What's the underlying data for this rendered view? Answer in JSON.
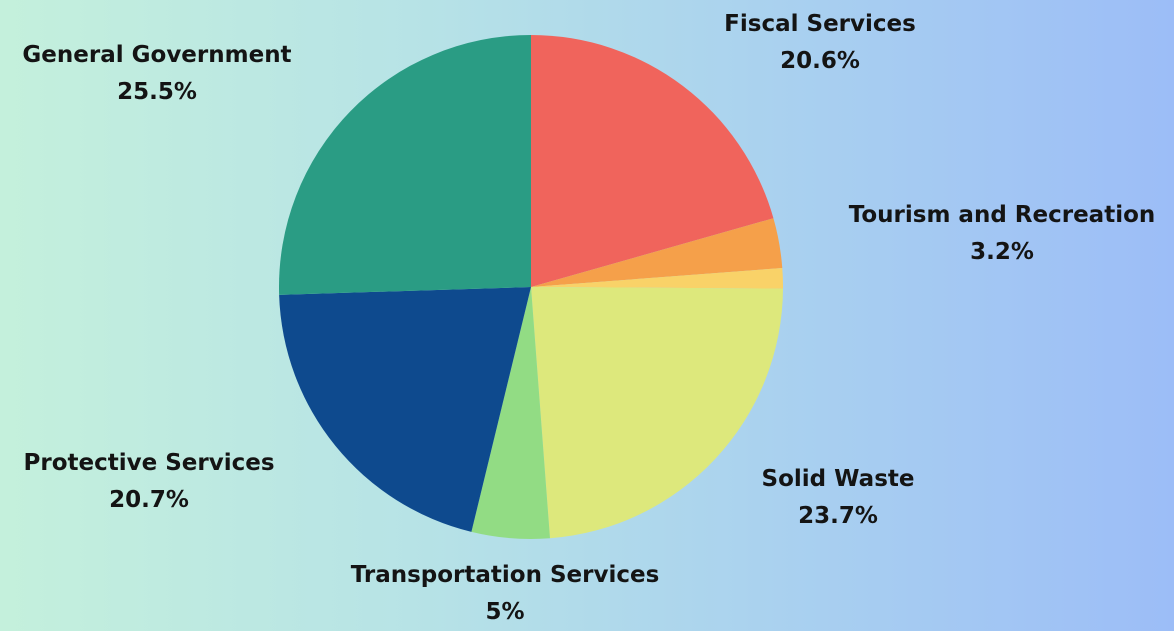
{
  "chart_data": {
    "type": "pie",
    "title": "",
    "start_angle_deg": 0,
    "direction": "clockwise",
    "slices": [
      {
        "label": "Fiscal Services",
        "pct_text": "20.6%",
        "value": 20.6,
        "color": "#f0645c"
      },
      {
        "label": "Tourism and Recreation",
        "pct_text": "3.2%",
        "value": 3.2,
        "color": "#f5a04a"
      },
      {
        "label": "",
        "pct_text": "",
        "value": 1.3,
        "color": "#f9d268"
      },
      {
        "label": "Solid Waste",
        "pct_text": "23.7%",
        "value": 23.7,
        "color": "#dde87c"
      },
      {
        "label": "Transportation Services",
        "pct_text": "5%",
        "value": 5.0,
        "color": "#92dc84"
      },
      {
        "label": "Protective Services",
        "pct_text": "20.7%",
        "value": 20.7,
        "color": "#0e4a8e"
      },
      {
        "label": "General Government",
        "pct_text": "25.5%",
        "value": 25.5,
        "color": "#2a9c84"
      }
    ]
  }
}
